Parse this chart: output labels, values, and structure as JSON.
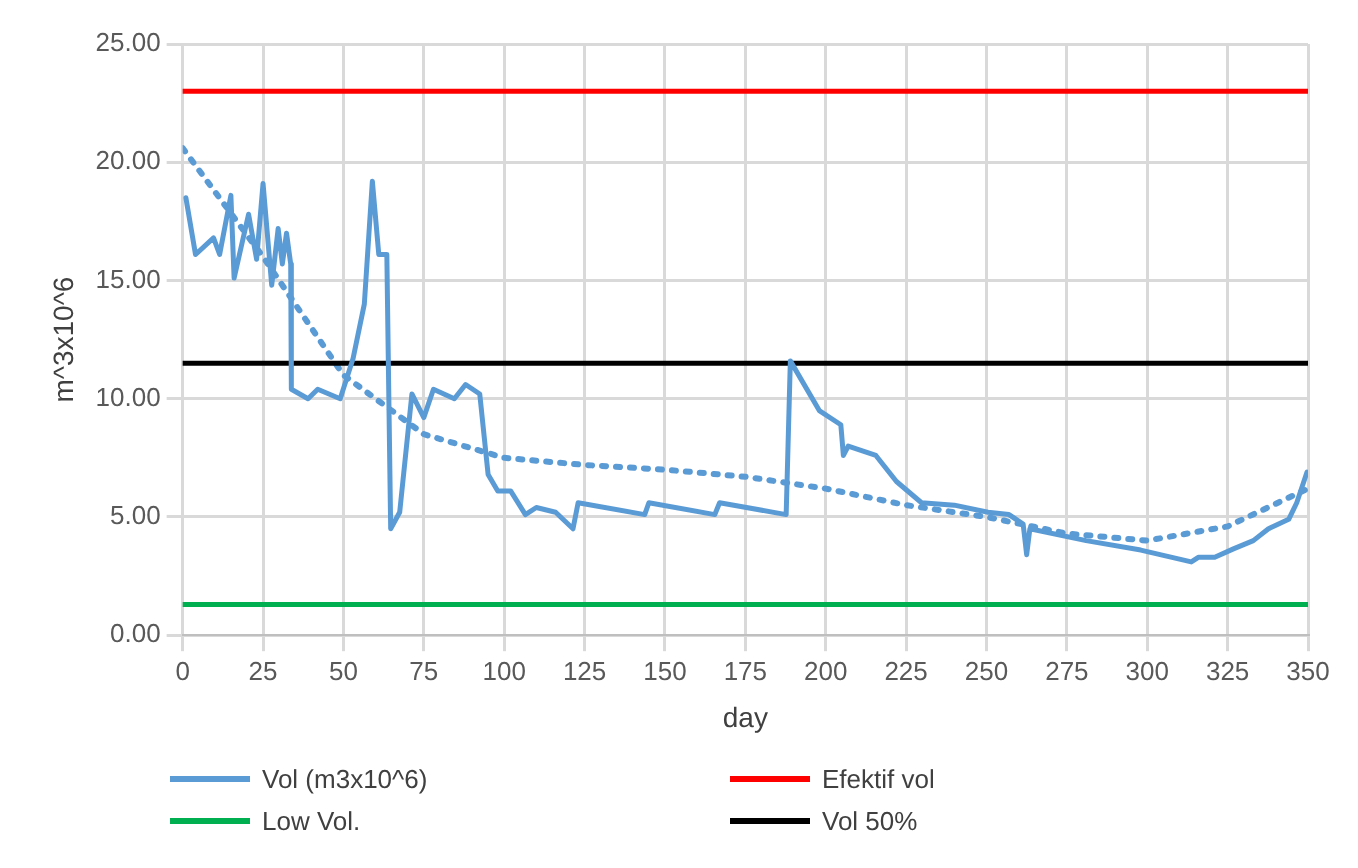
{
  "chart_data": {
    "type": "line",
    "xlabel": "day",
    "ylabel": "m^3x10^6",
    "xlim": [
      0,
      350
    ],
    "xticks": [
      0,
      25,
      50,
      75,
      100,
      125,
      150,
      175,
      200,
      225,
      250,
      275,
      300,
      325,
      350
    ],
    "ylim": [
      0,
      25
    ],
    "yticks": [
      {
        "value": 0,
        "label": "0.00"
      },
      {
        "value": 5,
        "label": "5.00"
      },
      {
        "value": 10,
        "label": "10.00"
      },
      {
        "value": 15,
        "label": "15.00"
      },
      {
        "value": 20,
        "label": "20.00"
      },
      {
        "value": 25,
        "label": "25.00"
      }
    ],
    "grid": true,
    "legend": "bottom",
    "marker": "none",
    "series": [
      {
        "name": "Vol (m3x10^6)",
        "color": "#5b9bd5",
        "line_style": "solid",
        "x": [
          1,
          4,
          9.6,
          11.5,
          15,
          16,
          20.5,
          23,
          25,
          27.7,
          29.7,
          31,
          32.3,
          33.6,
          33.8,
          39,
          42,
          49,
          53,
          56.5,
          59,
          61,
          63.5,
          64.7,
          67.5,
          71.3,
          75,
          78,
          84.5,
          88,
          92.4,
          95,
          98,
          102,
          106.6,
          110,
          116,
          121.4,
          123,
          143.7,
          145,
          165.5,
          167,
          187.7,
          189,
          198,
          204.7,
          205.5,
          207,
          215.6,
          222,
          229.8,
          240,
          250.5,
          257,
          261.4,
          262.5,
          263.5,
          281,
          298,
          313.7,
          316,
          321,
          326.8,
          333,
          337.7,
          344,
          346.5,
          349.7
        ],
        "values": [
          18.5,
          16.1,
          16.8,
          16.1,
          18.6,
          15.1,
          17.8,
          15.9,
          19.1,
          14.8,
          17.2,
          15.7,
          17,
          15.7,
          10.4,
          10,
          10.4,
          10,
          11.7,
          14,
          19.2,
          16.1,
          16.1,
          4.5,
          5.2,
          10.2,
          9.2,
          10.4,
          10,
          10.6,
          10.2,
          6.8,
          6.1,
          6.1,
          5.1,
          5.4,
          5.2,
          4.5,
          5.6,
          5.1,
          5.6,
          5.1,
          5.6,
          5.1,
          11.6,
          9.5,
          8.9,
          7.6,
          8,
          7.6,
          6.5,
          5.6,
          5.5,
          5.2,
          5.1,
          4.7,
          3.4,
          4.5,
          4,
          3.6,
          3.1,
          3.3,
          3.3,
          3.65,
          4,
          4.5,
          4.9,
          5.6,
          6.9
        ]
      },
      {
        "name": "Efektif vol",
        "color": "#ff0000",
        "line_style": "solid",
        "x": [
          0,
          350
        ],
        "values": [
          23,
          23
        ]
      },
      {
        "name": "Low Vol.",
        "color": "#00b050",
        "line_style": "solid",
        "x": [
          0,
          350
        ],
        "values": [
          1.3,
          1.3
        ]
      },
      {
        "name": "Vol 50%",
        "color": "#000000",
        "line_style": "solid",
        "x": [
          0,
          350
        ],
        "values": [
          11.5,
          11.5
        ]
      },
      {
        "color": "#5b9bd5",
        "line_style": "dotted",
        "x": [
          0,
          25,
          50,
          75,
          100,
          125,
          150,
          175,
          200,
          225,
          250,
          275,
          300,
          325,
          350
        ],
        "values": [
          20.6,
          16,
          11,
          8.5,
          7.5,
          7.2,
          7,
          6.7,
          6.2,
          5.5,
          5,
          4.3,
          4,
          4.6,
          6.2
        ]
      }
    ]
  }
}
